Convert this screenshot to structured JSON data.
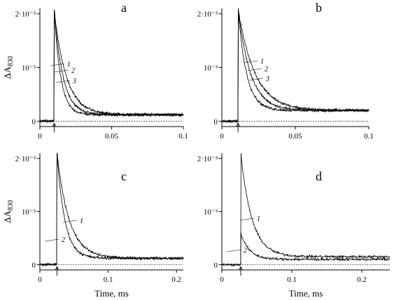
{
  "chart_data": [
    {
      "type": "line",
      "panel_label": "a",
      "ylabel": "ΔA",
      "ylabel_sub": "830",
      "xlabel": "",
      "xlim": [
        0,
        0.1
      ],
      "ylim": [
        -0.0001,
        0.0021
      ],
      "x_ticks": [
        0,
        0.05,
        0.1
      ],
      "x_tick_labels": [
        "0",
        "0.05",
        "0.1"
      ],
      "y_ticks": [
        0,
        0.001,
        0.002
      ],
      "y_tick_labels": [
        "0",
        "10⁻³",
        "2·10⁻³"
      ],
      "flash_time": 0.01,
      "baseline": 0,
      "series": [
        {
          "name": "1",
          "peak": 0.00205,
          "plateau": 0.00012,
          "tau": 0.0085
        },
        {
          "name": "2",
          "peak": 0.00205,
          "plateau": 0.00012,
          "tau": 0.0062
        },
        {
          "name": "3",
          "peak": 0.00205,
          "plateau": 0.00012,
          "tau": 0.0045
        }
      ]
    },
    {
      "type": "line",
      "panel_label": "b",
      "ylabel": "",
      "ylabel_sub": "",
      "xlabel": "",
      "xlim": [
        0,
        0.1
      ],
      "ylim": [
        -0.0001,
        0.0021
      ],
      "x_ticks": [
        0,
        0.05,
        0.1
      ],
      "x_tick_labels": [
        "0",
        "0.05",
        "0.1"
      ],
      "y_ticks": [
        0,
        0.001,
        0.002
      ],
      "y_tick_labels": [
        "0",
        "10⁻³",
        "2·10⁻³"
      ],
      "flash_time": 0.011,
      "baseline": 0,
      "series": [
        {
          "name": "1",
          "peak": 0.0021,
          "plateau": 0.0002,
          "tau": 0.0115
        },
        {
          "name": "2",
          "peak": 0.0021,
          "plateau": 0.0002,
          "tau": 0.0085
        },
        {
          "name": "3",
          "peak": 0.0021,
          "plateau": 0.0002,
          "tau": 0.0058
        }
      ]
    },
    {
      "type": "line",
      "panel_label": "c",
      "ylabel": "ΔA",
      "ylabel_sub": "830",
      "xlabel": "Time, ms",
      "xlim": [
        0,
        0.21
      ],
      "ylim": [
        -0.0001,
        0.0021
      ],
      "x_ticks": [
        0,
        0.1,
        0.2
      ],
      "x_tick_labels": [
        "0",
        "0.1",
        "0.2"
      ],
      "y_ticks": [
        0,
        0.001,
        0.002
      ],
      "y_tick_labels": [
        "0",
        "10⁻³",
        "2·10⁻³"
      ],
      "flash_time": 0.025,
      "baseline": 0,
      "series": [
        {
          "name": "1",
          "peak": 0.0021,
          "plateau": 0.00012,
          "tau": 0.018
        },
        {
          "name": "2",
          "peak": 0.0021,
          "plateau": 0.00012,
          "tau": 0.0115
        }
      ]
    },
    {
      "type": "line",
      "panel_label": "d",
      "ylabel": "",
      "ylabel_sub": "",
      "xlabel": "Time, ms",
      "xlim": [
        0,
        0.24
      ],
      "ylim": [
        -0.0001,
        0.0021
      ],
      "x_ticks": [
        0,
        0.1,
        0.2
      ],
      "x_tick_labels": [
        "0",
        "0.1",
        "0.2"
      ],
      "y_ticks": [
        0,
        0.001,
        0.002
      ],
      "y_tick_labels": [
        "0",
        "10⁻³",
        "2·10⁻³"
      ],
      "flash_time": 0.027,
      "baseline": 0,
      "series": [
        {
          "name": "1",
          "peak": 0.0021,
          "plateau": 0.00015,
          "tau": 0.016
        },
        {
          "name": "2",
          "peak": 0.0006,
          "plateau": 0.0001,
          "tau": 0.012
        }
      ]
    }
  ]
}
